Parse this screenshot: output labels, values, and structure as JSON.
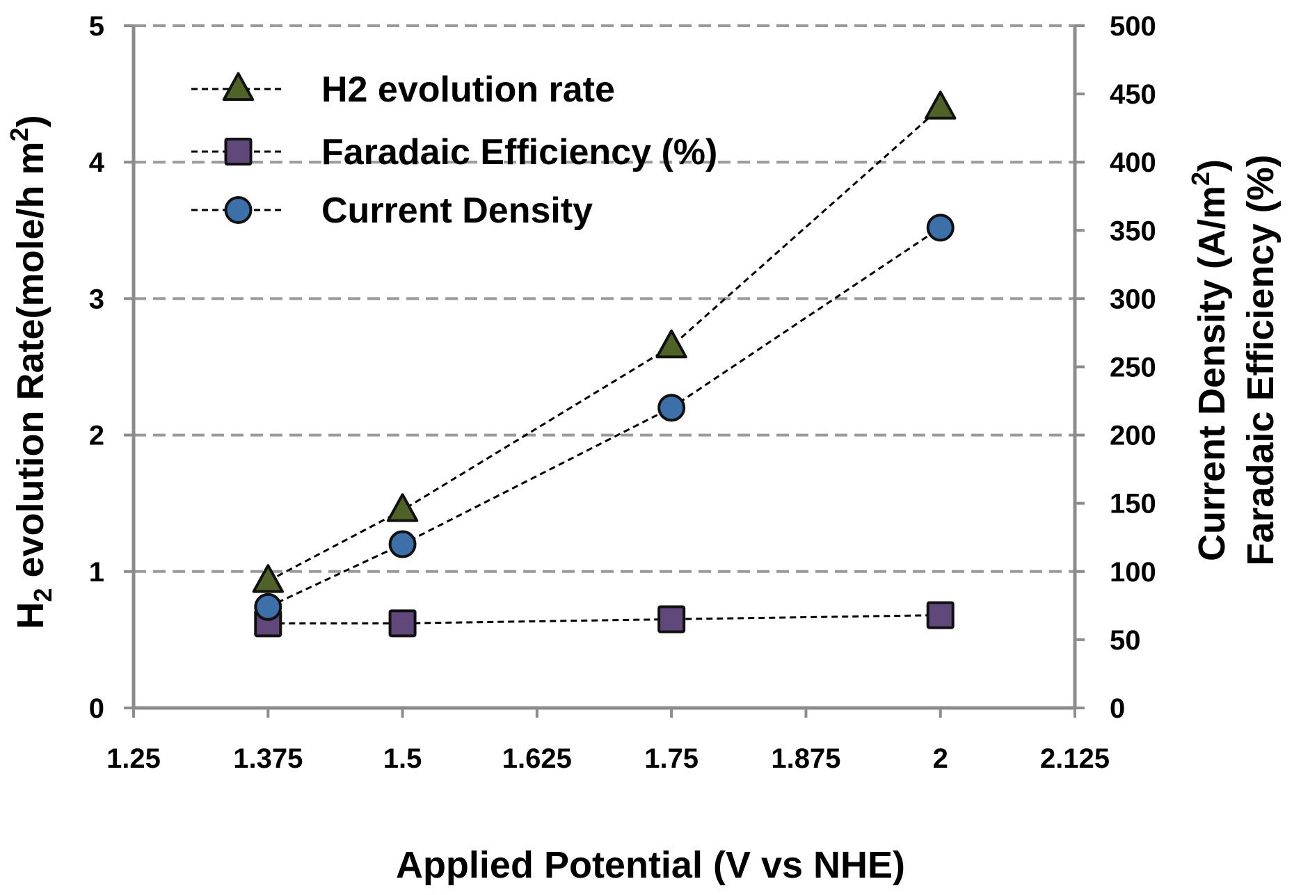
{
  "chart_data": {
    "type": "line",
    "xlabel": "Applied Potential (V vs NHE)",
    "ylabel_left": {
      "main": "H",
      "sub": "2",
      "rest": " evolution Rate(mole/h m",
      "sup": "2",
      "end": ")"
    },
    "ylabel_right_line1": {
      "main": "Current Density (A/m",
      "sup": "2",
      "end": ")"
    },
    "ylabel_right_line2": "Faradaic Efficiency (%)",
    "xlim": [
      1.25,
      2.125
    ],
    "x_ticks": [
      "1.25",
      "1.375",
      "1.5",
      "1.625",
      "1.75",
      "1.875",
      "2",
      "2.125"
    ],
    "ylim_left": [
      0,
      5
    ],
    "y_left_ticks": [
      "0",
      "1",
      "2",
      "3",
      "4",
      "5"
    ],
    "ylim_right": [
      0,
      500
    ],
    "y_right_ticks": [
      "0",
      "50",
      "100",
      "150",
      "200",
      "250",
      "300",
      "350",
      "400",
      "450",
      "500"
    ],
    "grid": "horizontal dashed",
    "legend_position": "top-left",
    "series": [
      {
        "name": "H2 evolution rate",
        "axis": "left",
        "marker": "triangle",
        "color": "#4f6228",
        "x": [
          1.375,
          1.5,
          1.75,
          2
        ],
        "y": [
          0.93,
          1.45,
          2.65,
          4.4
        ]
      },
      {
        "name": "Faradaic Efficiency (%)",
        "axis": "right",
        "marker": "square",
        "color": "#60497a",
        "x": [
          1.375,
          1.5,
          1.75,
          2
        ],
        "y": [
          62,
          62,
          65,
          68
        ]
      },
      {
        "name": "Current Density",
        "axis": "right",
        "marker": "circle",
        "color": "#3d6fa8",
        "x": [
          1.375,
          1.5,
          1.75,
          2
        ],
        "y": [
          74,
          120,
          220,
          352
        ]
      }
    ]
  }
}
